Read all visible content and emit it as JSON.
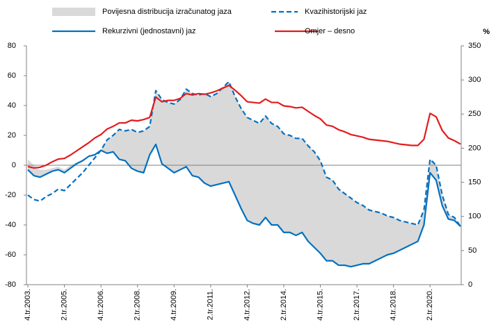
{
  "chart_data": {
    "type": "line",
    "categories": [
      "4.tr.2003.",
      null,
      null,
      null,
      null,
      null,
      "2.tr.2005.",
      null,
      null,
      null,
      null,
      null,
      "4.tr.2006.",
      null,
      null,
      null,
      null,
      null,
      "2.tr.2008.",
      null,
      null,
      null,
      null,
      null,
      "4.tr.2009.",
      null,
      null,
      null,
      null,
      null,
      "2.tr.2011.",
      null,
      null,
      null,
      null,
      null,
      "4.tr.2012.",
      null,
      null,
      null,
      null,
      null,
      "2.tr.2014.",
      null,
      null,
      null,
      null,
      null,
      "4.tr.2015.",
      null,
      null,
      null,
      null,
      null,
      "2.tr.2017.",
      null,
      null,
      null,
      null,
      null,
      "4.tr.2018.",
      null,
      null,
      null,
      null,
      null,
      "2.tr.2020.",
      null,
      null,
      null,
      null,
      null
    ],
    "ylim": [
      -80,
      80
    ],
    "yticks": [
      -80,
      -60,
      -40,
      -20,
      0,
      20,
      40,
      60,
      80
    ],
    "y2lim": [
      0,
      350
    ],
    "y2ticks": [
      0,
      50,
      100,
      150,
      200,
      250,
      300,
      350
    ],
    "y2label": "%",
    "series": [
      {
        "name": "Povijesna distribucija izračunatog jaza",
        "color": "#d9d9d9",
        "type": "area",
        "upper": [
          4,
          0,
          -3,
          -3,
          -2,
          -1,
          -3,
          0,
          2,
          4,
          6,
          8,
          10,
          17,
          20,
          24,
          23,
          24,
          22,
          23,
          26,
          50,
          44,
          42,
          41,
          44,
          51,
          48,
          47,
          48,
          46,
          48,
          52,
          56,
          46,
          38,
          32,
          30,
          28,
          33,
          28,
          26,
          21,
          20,
          18,
          18,
          13,
          9,
          3,
          -8,
          -10,
          -16,
          -19,
          -22,
          -25,
          -27,
          -30,
          -31,
          -32,
          -34,
          -35,
          -37,
          -38,
          -39,
          -40,
          -30,
          4,
          0,
          -20,
          -33,
          -35,
          -41
        ],
        "lower": [
          -3,
          -7,
          -8,
          -6,
          -4,
          -3,
          -5,
          -2,
          1,
          3,
          6,
          7,
          10,
          8,
          9,
          4,
          3,
          -2,
          -4,
          -5,
          7,
          14,
          1,
          -2,
          -5,
          -3,
          -1,
          -7,
          -8,
          -12,
          -14,
          -13,
          -12,
          -11,
          -20,
          -29,
          -37,
          -39,
          -40,
          -35,
          -40,
          -40,
          -45,
          -45,
          -47,
          -45,
          -51,
          -55,
          -59,
          -64,
          -64,
          -67,
          -67,
          -68,
          -67,
          -66,
          -66,
          -64,
          -62,
          -60,
          -59,
          -57,
          -55,
          -53,
          -51,
          -40,
          -5,
          -10,
          -27,
          -36,
          -37,
          -41
        ]
      },
      {
        "name": "Kvazihistorijski jaz",
        "color": "#0070c0",
        "dashed": true,
        "values": [
          -20,
          -23,
          -24,
          -21,
          -19,
          -16,
          -17,
          -13,
          -9,
          -5,
          0,
          5,
          10,
          17,
          20,
          24,
          23,
          24,
          22,
          23,
          26,
          50,
          44,
          42,
          41,
          44,
          51,
          48,
          47,
          48,
          46,
          48,
          52,
          56,
          46,
          38,
          32,
          30,
          28,
          33,
          28,
          26,
          21,
          20,
          18,
          18,
          13,
          9,
          3,
          -8,
          -10,
          -16,
          -19,
          -22,
          -25,
          -27,
          -30,
          -31,
          -32,
          -34,
          -35,
          -37,
          -38,
          -39,
          -40,
          -30,
          4,
          0,
          -20,
          -33,
          -35,
          -41
        ]
      },
      {
        "name": "Rekurzivni (jednostavni) jaz",
        "color": "#0070c0",
        "values": [
          -3,
          -7,
          -8,
          -6,
          -4,
          -3,
          -5,
          -2,
          1,
          3,
          6,
          7,
          10,
          8,
          9,
          4,
          3,
          -2,
          -4,
          -5,
          7,
          14,
          1,
          -2,
          -5,
          -3,
          -1,
          -7,
          -8,
          -12,
          -14,
          -13,
          -12,
          -11,
          -20,
          -29,
          -37,
          -39,
          -40,
          -35,
          -40,
          -40,
          -45,
          -45,
          -47,
          -45,
          -51,
          -55,
          -59,
          -64,
          -64,
          -67,
          -67,
          -68,
          -67,
          -66,
          -66,
          -64,
          -62,
          -60,
          -59,
          -57,
          -55,
          -53,
          -51,
          -40,
          -5,
          -10,
          -27,
          -36,
          -37,
          -41
        ]
      },
      {
        "name": "Omjer – desno",
        "color": "#e31a1c",
        "axis": "y2",
        "values": [
          173,
          171,
          172,
          175,
          180,
          184,
          185,
          190,
          196,
          202,
          208,
          215,
          220,
          228,
          232,
          237,
          237,
          241,
          240,
          242,
          245,
          275,
          268,
          270,
          270,
          273,
          280,
          278,
          280,
          279,
          281,
          284,
          288,
          292,
          285,
          277,
          268,
          267,
          266,
          272,
          267,
          267,
          262,
          261,
          259,
          260,
          254,
          248,
          243,
          234,
          232,
          227,
          224,
          220,
          218,
          216,
          213,
          212,
          211,
          210,
          208,
          206,
          205,
          204,
          204,
          213,
          251,
          246,
          226,
          215,
          211,
          206
        ]
      }
    ]
  }
}
